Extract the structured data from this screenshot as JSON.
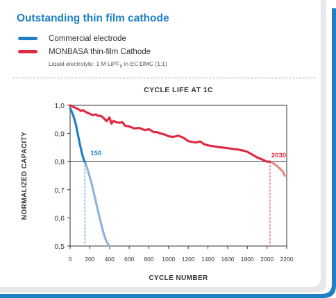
{
  "header": {
    "title": "Outstanding thin film cathode"
  },
  "legend": {
    "items": [
      {
        "label": "Commercial electrode",
        "color": "#1f80c4"
      },
      {
        "label": "MONBASA thin-film Cathode",
        "color": "#e02a43"
      }
    ],
    "note_prefix": "Liquid electrolyte: 1 M LiPF",
    "note_sub": "6",
    "note_suffix": " in EC:DMC (1:1)"
  },
  "colors": {
    "brand_blue": "#1f80c4",
    "brand_red": "#e02a43",
    "frame_gray": "#e6e8ea"
  },
  "chart_data": {
    "type": "line",
    "title": "CYCLE LIFE AT 1C",
    "xlabel": "CYCLE NUMBER",
    "ylabel": "NORMALIZED CAPACITY",
    "xlim": [
      0,
      2200
    ],
    "ylim": [
      0.5,
      1.0
    ],
    "x_ticks": [
      "0",
      "200",
      "400",
      "600",
      "800",
      "1000",
      "1200",
      "1400",
      "1600",
      "1800",
      "2000",
      "2200"
    ],
    "y_ticks": [
      "0,5",
      "0,6",
      "0,7",
      "0,8",
      "0,9",
      "1,0"
    ],
    "threshold": 0.8,
    "series": [
      {
        "name": "Commercial electrode",
        "color": "#1f80c4",
        "fade_color": "#8fb3de",
        "x": [
          0,
          20,
          40,
          60,
          80,
          100,
          120,
          140,
          150,
          180,
          220,
          260,
          300,
          340,
          370,
          400
        ],
        "y": [
          0.99,
          0.975,
          0.955,
          0.93,
          0.895,
          0.86,
          0.83,
          0.805,
          0.8,
          0.77,
          0.72,
          0.66,
          0.6,
          0.545,
          0.515,
          0.5
        ],
        "annotation": "150",
        "annotation_x": 150
      },
      {
        "name": "MONBASA thin-film Cathode",
        "color": "#e02a43",
        "fade_color": "#e88a80",
        "x": [
          0,
          30,
          60,
          90,
          110,
          130,
          160,
          180,
          200,
          230,
          260,
          290,
          310,
          340,
          370,
          400,
          420,
          440,
          470,
          500,
          530,
          560,
          600,
          650,
          700,
          760,
          800,
          850,
          880,
          920,
          970,
          1000,
          1050,
          1100,
          1150,
          1180,
          1200,
          1240,
          1280,
          1320,
          1360,
          1400,
          1450,
          1500,
          1550,
          1600,
          1650,
          1700,
          1750,
          1800,
          1850,
          1900,
          1950,
          2000,
          2030,
          2060,
          2100,
          2130,
          2160,
          2180
        ],
        "y": [
          1.0,
          0.995,
          0.99,
          0.985,
          0.98,
          0.983,
          0.976,
          0.973,
          0.97,
          0.965,
          0.968,
          0.962,
          0.963,
          0.955,
          0.944,
          0.957,
          0.935,
          0.945,
          0.94,
          0.938,
          0.94,
          0.927,
          0.925,
          0.918,
          0.92,
          0.912,
          0.915,
          0.905,
          0.905,
          0.9,
          0.895,
          0.89,
          0.888,
          0.892,
          0.885,
          0.878,
          0.873,
          0.87,
          0.868,
          0.872,
          0.862,
          0.858,
          0.855,
          0.852,
          0.85,
          0.848,
          0.845,
          0.843,
          0.84,
          0.835,
          0.825,
          0.815,
          0.808,
          0.8,
          0.8,
          0.795,
          0.785,
          0.775,
          0.765,
          0.75
        ],
        "annotation": "2030",
        "annotation_x": 2030
      }
    ]
  }
}
